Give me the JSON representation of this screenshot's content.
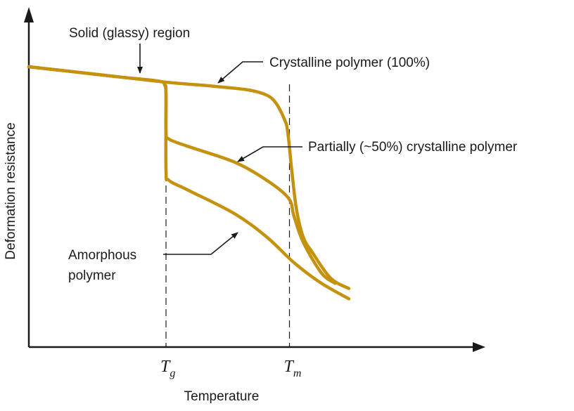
{
  "chart_data": {
    "type": "line",
    "title": "",
    "xlabel": "Temperature",
    "ylabel": "Deformation resistance",
    "ticks": [
      {
        "base": "T",
        "sub": "g",
        "x": 0.3
      },
      {
        "base": "T",
        "sub": "m",
        "x": 0.57
      }
    ],
    "xlim": [
      0,
      1
    ],
    "ylim": [
      0,
      1
    ],
    "grid": false,
    "colors": {
      "curve": "#C4920F",
      "ink": "#1a1a1a"
    },
    "series": [
      {
        "name": "Crystalline polymer (100%)",
        "x": [
          0.0,
          0.1,
          0.2,
          0.3,
          0.4,
          0.48,
          0.52,
          0.54,
          0.558,
          0.566,
          0.575,
          0.585,
          0.6,
          0.62,
          0.66,
          0.7
        ],
        "y": [
          1.0,
          0.98,
          0.96,
          0.94,
          0.925,
          0.91,
          0.89,
          0.86,
          0.8,
          0.75,
          0.6,
          0.45,
          0.34,
          0.28,
          0.18,
          0.14
        ]
      },
      {
        "name": "Partially (~50%) crystalline polymer",
        "x": [
          0.0,
          0.1,
          0.2,
          0.285,
          0.297,
          0.3,
          0.3,
          0.306,
          0.35,
          0.45,
          0.52,
          0.568,
          0.58,
          0.6,
          0.64,
          0.67
        ],
        "y": [
          1.0,
          0.98,
          0.96,
          0.944,
          0.93,
          0.89,
          0.75,
          0.72,
          0.69,
          0.63,
          0.56,
          0.49,
          0.42,
          0.32,
          0.2,
          0.16
        ]
      },
      {
        "name": "Amorphous polymer",
        "x": [
          0.0,
          0.1,
          0.2,
          0.285,
          0.297,
          0.3,
          0.3,
          0.306,
          0.35,
          0.45,
          0.52,
          0.58,
          0.64,
          0.7
        ],
        "y": [
          1.0,
          0.98,
          0.96,
          0.944,
          0.93,
          0.89,
          0.6,
          0.56,
          0.52,
          0.43,
          0.34,
          0.24,
          0.16,
          0.1
        ]
      }
    ],
    "annotations": [
      {
        "text": "Solid (glassy) region",
        "target": 0.22
      },
      {
        "text": "Crystalline polymer (100%)",
        "target_series": 0
      },
      {
        "text": "Partially (~50%) crystalline polymer",
        "target_series": 1
      },
      {
        "text": "Amorphous polymer",
        "lines": [
          "Amorphous",
          "polymer"
        ],
        "target_series": 2
      }
    ]
  }
}
